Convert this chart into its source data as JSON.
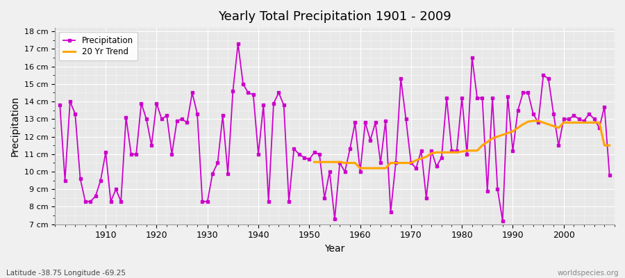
{
  "title": "Yearly Total Precipitation 1901 - 2009",
  "xlabel": "Year",
  "ylabel": "Precipitation",
  "subtitle": "Latitude -38.75 Longitude -69.25",
  "watermark": "worldspecies.org",
  "bg_color": "#f0f0f0",
  "plot_bg_color": "#e8e8e8",
  "precip_color": "#cc00cc",
  "trend_color": "#ffa500",
  "years": [
    1901,
    1902,
    1903,
    1904,
    1905,
    1906,
    1907,
    1908,
    1909,
    1910,
    1911,
    1912,
    1913,
    1914,
    1915,
    1916,
    1917,
    1918,
    1919,
    1920,
    1921,
    1922,
    1923,
    1924,
    1925,
    1926,
    1927,
    1928,
    1929,
    1930,
    1931,
    1932,
    1933,
    1934,
    1935,
    1936,
    1937,
    1938,
    1939,
    1940,
    1941,
    1942,
    1943,
    1944,
    1945,
    1946,
    1947,
    1948,
    1949,
    1950,
    1951,
    1952,
    1953,
    1954,
    1955,
    1956,
    1957,
    1958,
    1959,
    1960,
    1961,
    1962,
    1963,
    1964,
    1965,
    1966,
    1967,
    1968,
    1969,
    1970,
    1971,
    1972,
    1973,
    1974,
    1975,
    1976,
    1977,
    1978,
    1979,
    1980,
    1981,
    1982,
    1983,
    1984,
    1985,
    1986,
    1987,
    1988,
    1989,
    1990,
    1991,
    1992,
    1993,
    1994,
    1995,
    1996,
    1997,
    1998,
    1999,
    2000,
    2001,
    2002,
    2003,
    2004,
    2005,
    2006,
    2007,
    2008,
    2009
  ],
  "precip": [
    13.8,
    9.5,
    14.0,
    13.3,
    9.6,
    8.3,
    8.3,
    8.6,
    9.5,
    11.1,
    8.3,
    9.0,
    8.3,
    13.1,
    11.0,
    11.0,
    13.9,
    13.0,
    11.5,
    13.9,
    13.0,
    13.2,
    11.0,
    12.9,
    13.0,
    12.8,
    14.5,
    13.3,
    8.3,
    8.3,
    9.9,
    10.5,
    13.2,
    9.9,
    14.6,
    17.3,
    15.0,
    14.5,
    14.4,
    11.0,
    13.8,
    8.3,
    13.9,
    14.5,
    13.8,
    8.3,
    11.3,
    11.0,
    10.8,
    10.7,
    11.1,
    11.0,
    8.5,
    10.0,
    7.3,
    10.5,
    10.0,
    11.3,
    12.8,
    10.0,
    12.8,
    11.8,
    12.8,
    10.5,
    12.9,
    7.7,
    10.5,
    15.3,
    13.0,
    10.5,
    10.2,
    11.2,
    8.5,
    11.2,
    10.3,
    10.8,
    14.2,
    11.2,
    11.2,
    14.2,
    11.0,
    16.5,
    14.2,
    14.2,
    8.9,
    14.2,
    9.0,
    7.2,
    14.3,
    11.2,
    13.5,
    14.5,
    14.5,
    13.3,
    12.8,
    15.5,
    15.3,
    13.3,
    11.5,
    13.0,
    13.0,
    13.2,
    13.0,
    12.9,
    13.3,
    13.0,
    12.5,
    13.7,
    9.8
  ],
  "trend_start_year": 1951,
  "trend": [
    10.55,
    10.55,
    10.55,
    10.55,
    10.55,
    10.55,
    10.5,
    10.5,
    10.5,
    10.2,
    10.2,
    10.2,
    10.2,
    10.2,
    10.2,
    10.5,
    10.5,
    10.5,
    10.5,
    10.5,
    10.65,
    10.75,
    10.85,
    11.05,
    11.1,
    11.1,
    11.1,
    11.1,
    11.1,
    11.15,
    11.2,
    11.2,
    11.2,
    11.5,
    11.7,
    11.9,
    12.0,
    12.1,
    12.2,
    12.3,
    12.5,
    12.7,
    12.85,
    12.9,
    12.9,
    12.8,
    12.7,
    12.6,
    12.5,
    12.8,
    12.8,
    12.8,
    12.8,
    12.8,
    12.8,
    12.8,
    12.8,
    11.5,
    11.5
  ],
  "ylim": [
    7,
    18.2
  ],
  "yticks": [
    7,
    8,
    9,
    10,
    11,
    12,
    13,
    14,
    15,
    16,
    17,
    18
  ],
  "ytick_labels": [
    "7 cm",
    "8 cm",
    "9 cm",
    "10 cm",
    "11 cm",
    "12 cm",
    "13 cm",
    "14 cm",
    "15 cm",
    "16 cm",
    "17 cm",
    "18 cm"
  ],
  "xlim": [
    1900,
    2010
  ],
  "xticks": [
    1910,
    1920,
    1930,
    1940,
    1950,
    1960,
    1970,
    1980,
    1990,
    2000
  ]
}
